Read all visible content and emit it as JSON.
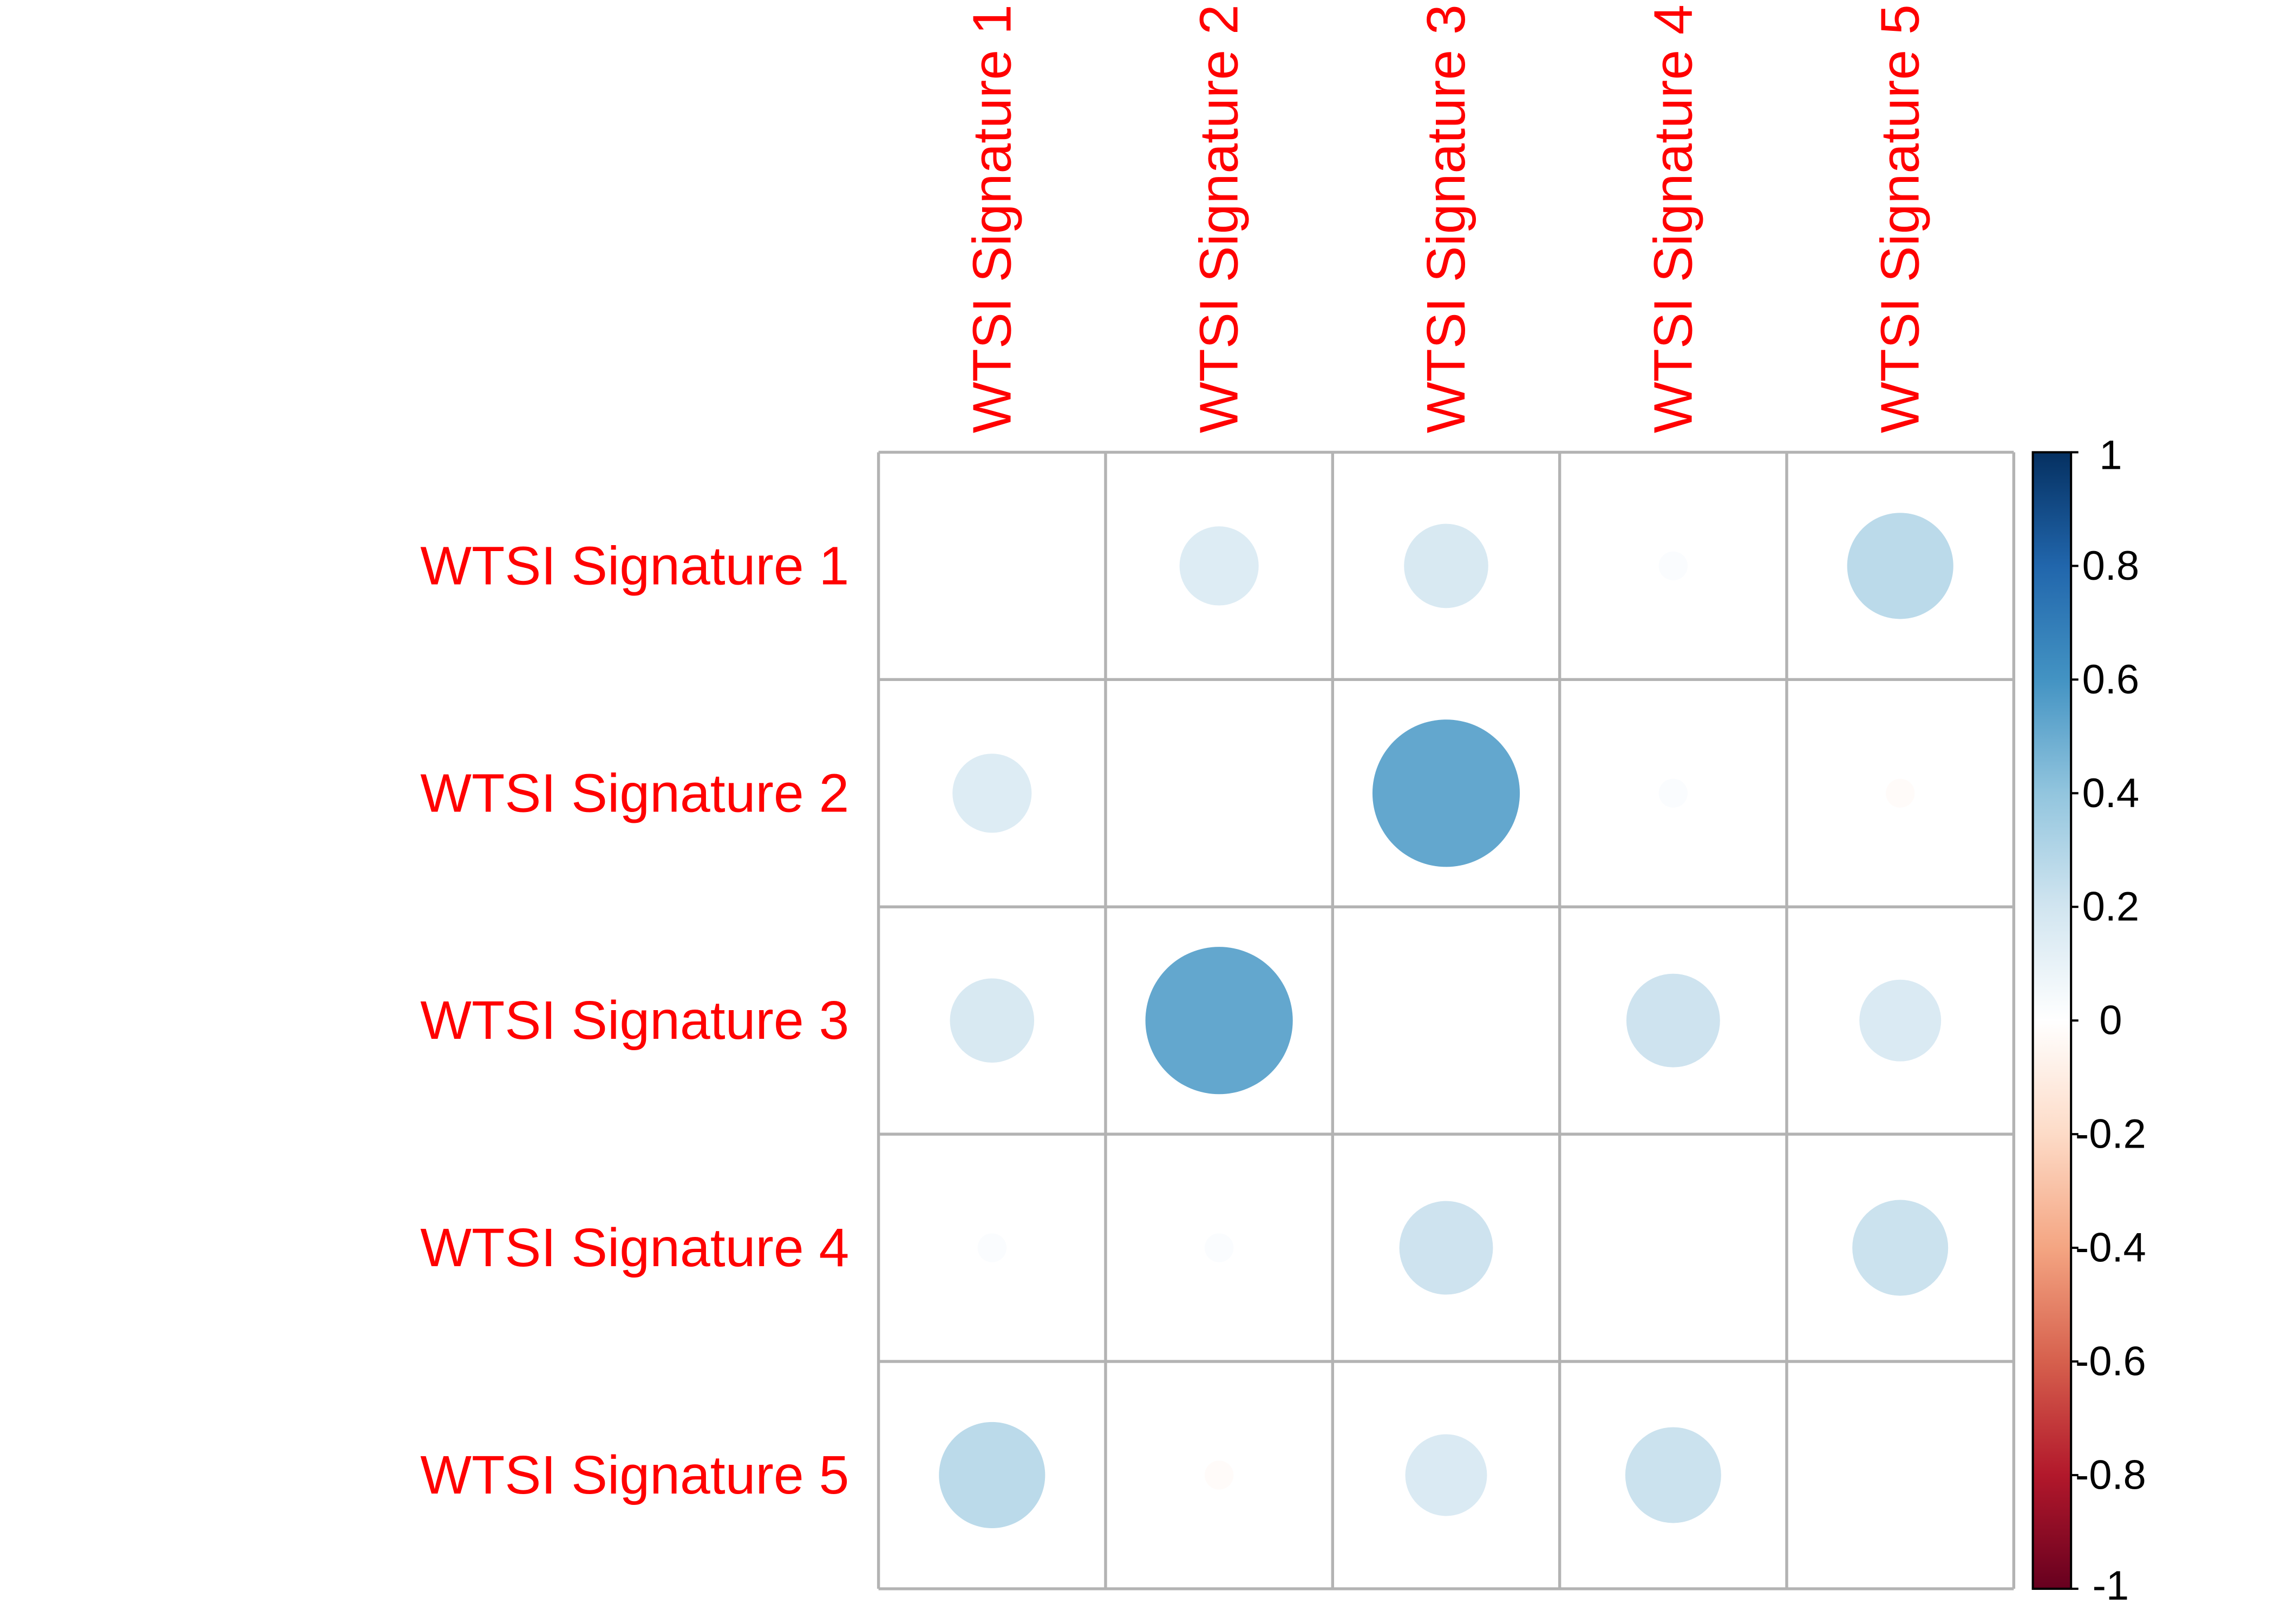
{
  "chart_data": {
    "type": "heatmap",
    "marker": "circle",
    "rows": [
      "WTSI Signature 1",
      "WTSI Signature 2",
      "WTSI Signature 3",
      "WTSI Signature 4",
      "WTSI Signature 5"
    ],
    "cols": [
      "WTSI Signature 1",
      "WTSI Signature 2",
      "WTSI Signature 3",
      "WTSI Signature 4",
      "WTSI Signature 5"
    ],
    "values": [
      [
        null,
        0.15,
        0.17,
        0.02,
        0.27
      ],
      [
        0.15,
        null,
        0.52,
        0.02,
        -0.02
      ],
      [
        0.17,
        0.52,
        null,
        0.21,
        0.16
      ],
      [
        0.02,
        0.02,
        0.21,
        null,
        0.22
      ],
      [
        0.27,
        -0.02,
        0.16,
        0.22,
        null
      ]
    ],
    "value_range": [
      -1,
      1
    ],
    "colorscale": [
      "#67001F",
      "#B2182B",
      "#D6604D",
      "#F4A582",
      "#FDDBC7",
      "#FFFFFF",
      "#D1E5F0",
      "#92C5DE",
      "#4393C3",
      "#2166AC",
      "#053061"
    ],
    "legend_ticks": [
      "1",
      "0.8",
      "0.6",
      "0.4",
      "0.2",
      "0",
      "-0.2",
      "-0.4",
      "-0.6",
      "-0.8",
      "-1"
    ],
    "legend_placement": "right",
    "grid": true,
    "grid_color": "#B3B3B3",
    "label_color": "#FF0000"
  }
}
